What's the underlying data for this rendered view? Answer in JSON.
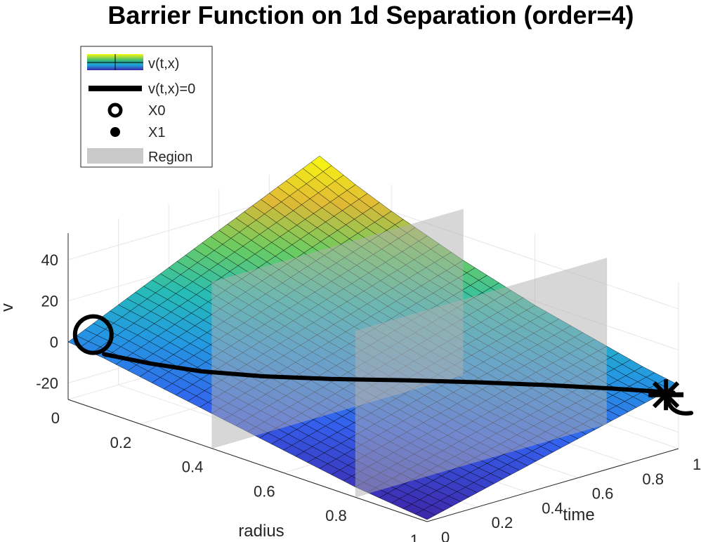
{
  "chart_data": {
    "type": "surface3d",
    "title": "Barrier Function on 1d Separation (order=4)",
    "xlabel": "radius",
    "ylabel": "time",
    "zlabel": "v",
    "x_ticks": [
      "0",
      "0.2",
      "0.4",
      "0.6",
      "0.8",
      "1"
    ],
    "y_ticks": [
      "0",
      "0.2",
      "0.4",
      "0.6",
      "0.8",
      "1"
    ],
    "z_ticks": [
      "-20",
      "0",
      "20",
      "40"
    ],
    "xlim": [
      0,
      1
    ],
    "ylim": [
      0,
      1
    ],
    "zlim": [
      -28,
      53
    ],
    "grid": true,
    "colormap": "parula",
    "legend_position": "top-left",
    "legend": [
      {
        "label": "v(t,x)",
        "kind": "surface"
      },
      {
        "label": "v(t,x)=0",
        "kind": "line"
      },
      {
        "label": "X0",
        "kind": "circle-marker"
      },
      {
        "label": "X1",
        "kind": "dot-marker"
      },
      {
        "label": "Region",
        "kind": "patch"
      }
    ],
    "surface": {
      "x": [
        0,
        0.1,
        0.2,
        0.3,
        0.4,
        0.5,
        0.6,
        0.7,
        0.8,
        0.9,
        1.0
      ],
      "t": [
        0,
        0.1,
        0.2,
        0.3,
        0.4,
        0.5,
        0.6,
        0.7,
        0.8,
        0.9,
        1.0
      ],
      "v_t0": [
        0,
        -2,
        -5,
        -8,
        -11,
        -14,
        -17,
        -20,
        -23,
        -25,
        -27
      ],
      "v_t1": [
        55,
        47,
        40,
        34,
        28,
        23,
        18,
        14,
        10,
        6,
        3
      ]
    },
    "zero_level_curve": {
      "x": [
        0.1,
        0.2,
        0.3,
        0.4,
        0.5,
        0.6,
        0.7,
        0.8,
        0.9,
        1.0
      ],
      "t": [
        0.0,
        0.04,
        0.1,
        0.2,
        0.33,
        0.48,
        0.62,
        0.75,
        0.87,
        0.98
      ],
      "v": [
        0,
        0,
        0,
        0,
        0,
        0,
        0,
        0,
        0,
        0
      ]
    },
    "region_slabs": [
      {
        "x": 0.4,
        "v_range": [
          -28,
          53
        ]
      },
      {
        "x": 0.8,
        "v_range": [
          -28,
          53
        ]
      }
    ],
    "X0": {
      "x": 0.0,
      "t": 0.1,
      "v": 0
    },
    "X1": {
      "x": 1.0,
      "t": 0.95,
      "v": 0
    }
  },
  "colors": {
    "surface_low": "#3e26a8",
    "surface_mid": "#2aa8d8",
    "surface_high": "#f9fb0e",
    "mesh": "#000000",
    "region": "#b0b0b0",
    "curve": "#000000",
    "axis_text": "#262626"
  }
}
